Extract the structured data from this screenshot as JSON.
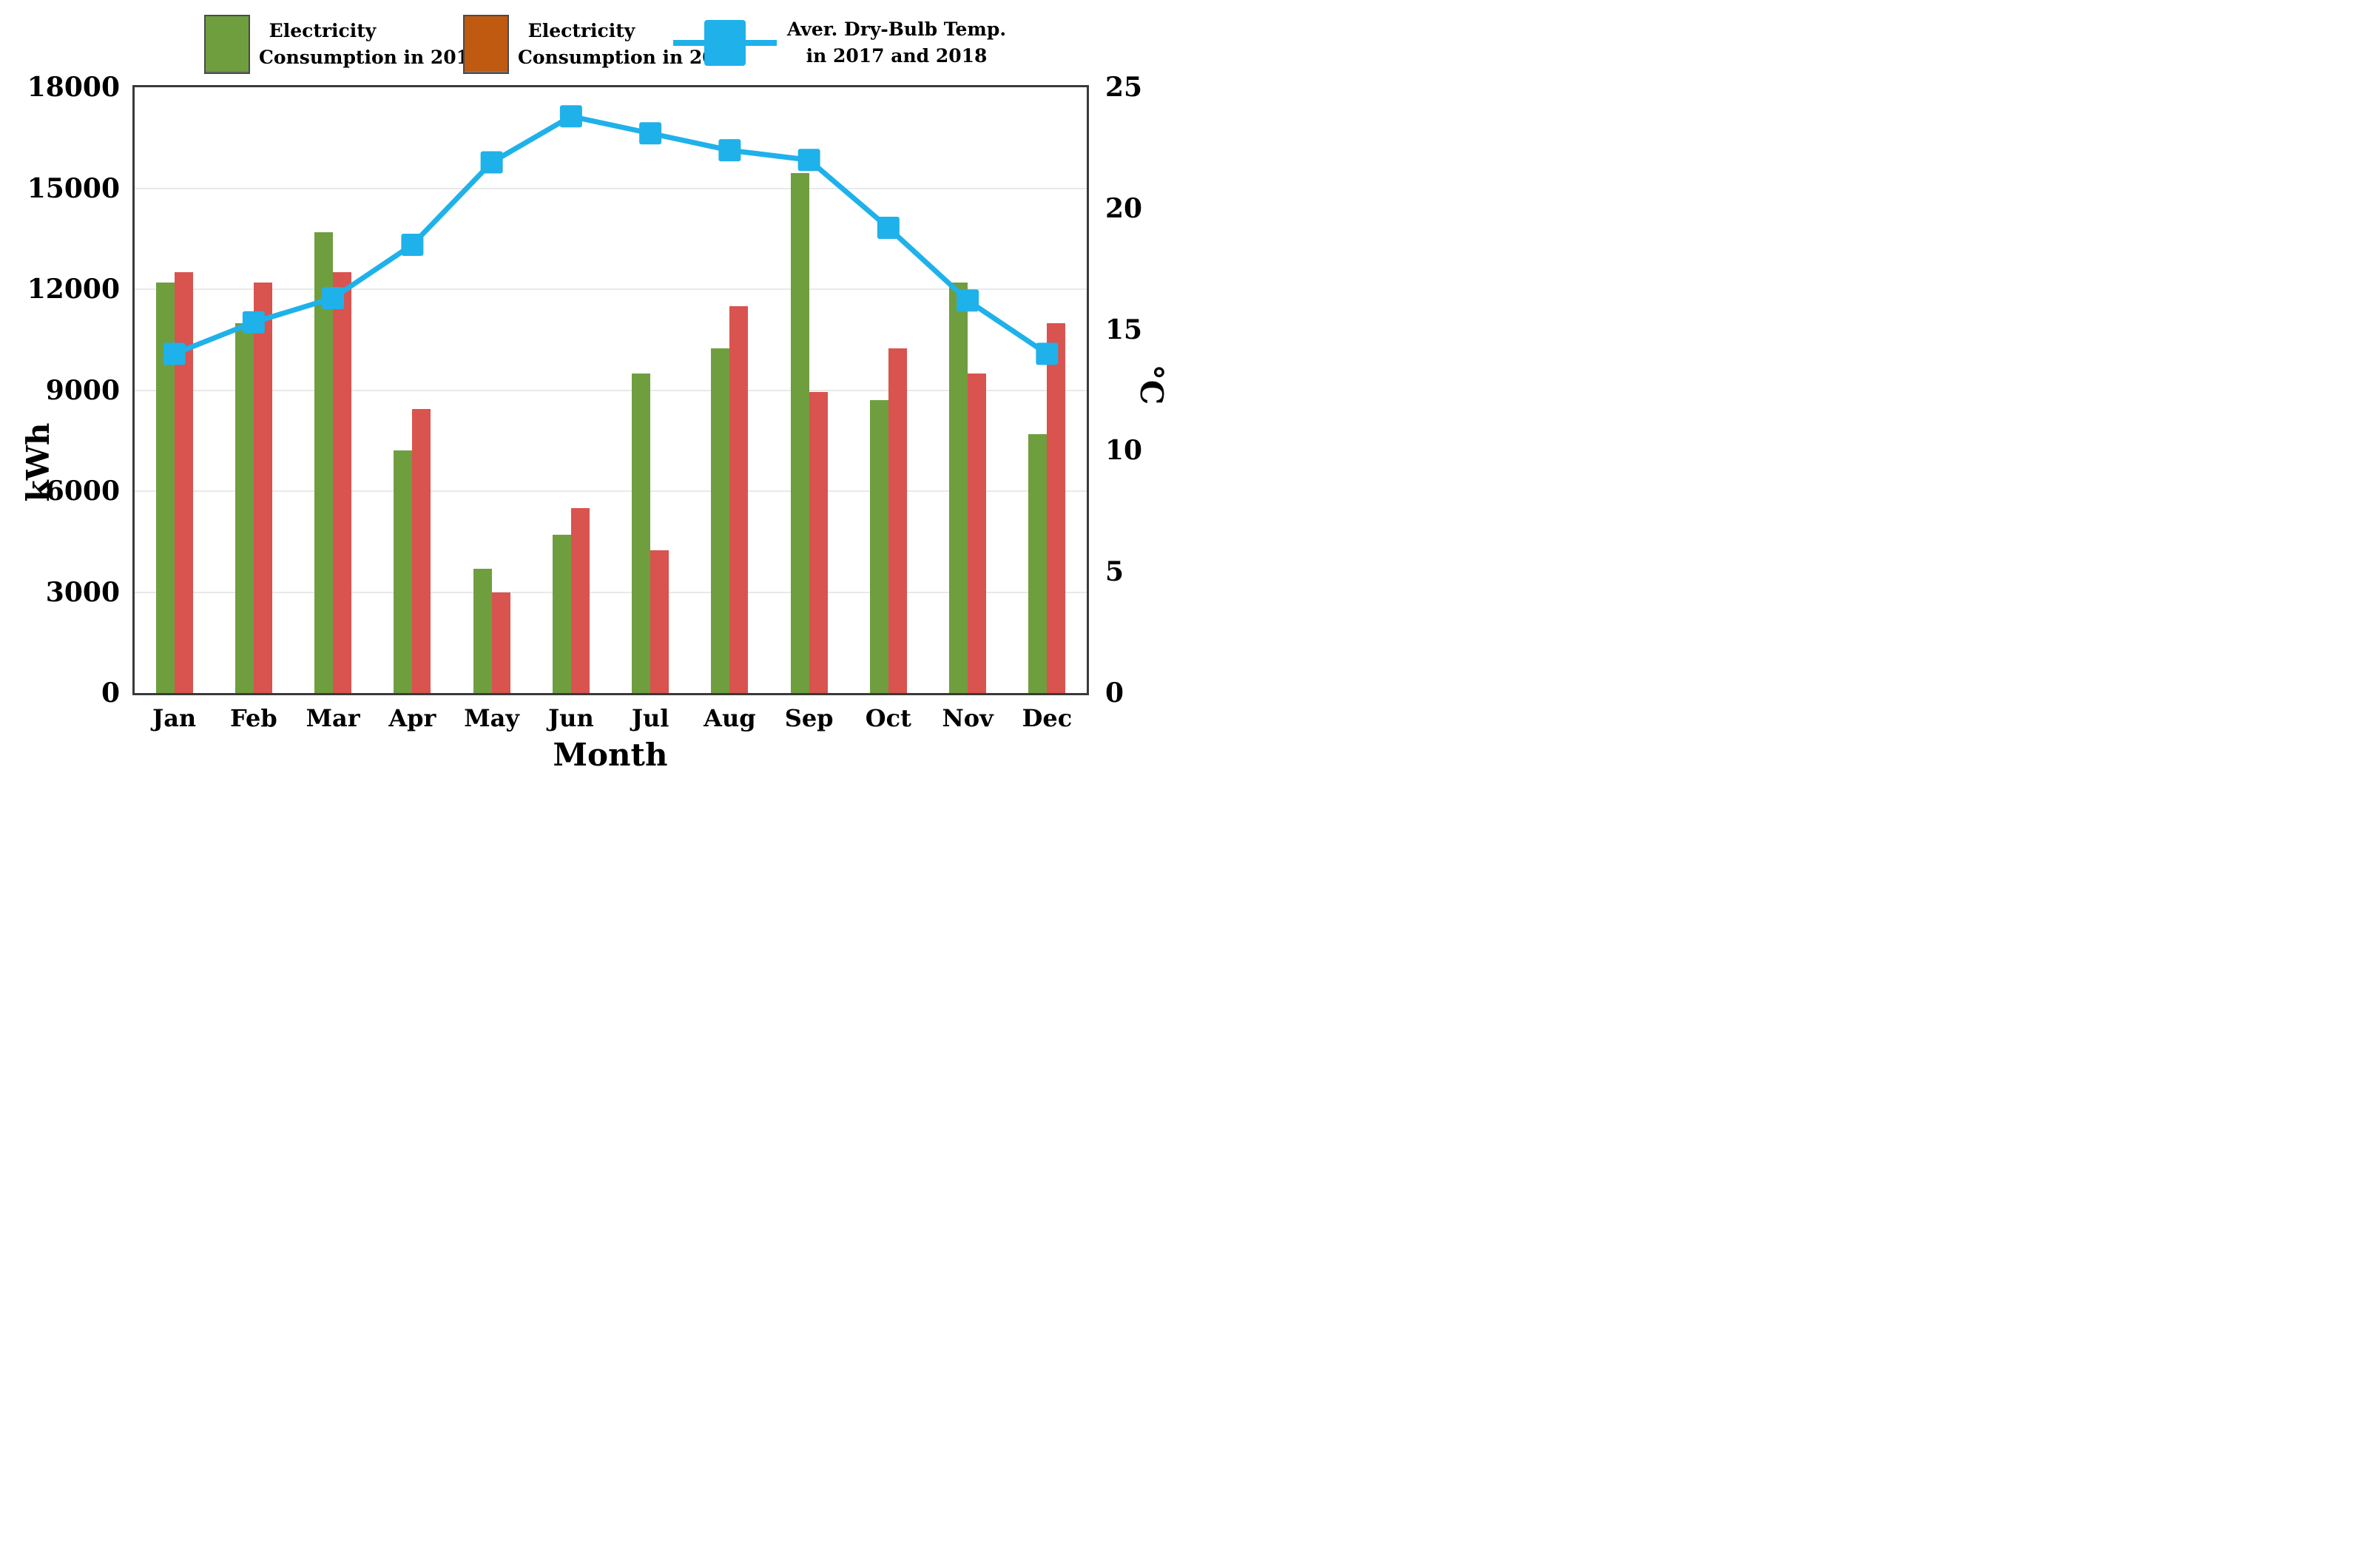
{
  "figure": {
    "background": "#ffffff"
  },
  "legend": {
    "items": [
      {
        "name": "electricity-2017",
        "line1": "Electricity",
        "line2": "Consumption in 2017",
        "swatch_color": "#6f9e3f"
      },
      {
        "name": "electricity-2018",
        "line1": "Electricity",
        "line2": "Consumption in 2018",
        "swatch_color": "#c05a11"
      },
      {
        "name": "dry-bulb-temp",
        "line1": "Aver. Dry-Bulb Temp.",
        "line2": "in 2017 and 2018",
        "swatch_color": "#1fb1ea"
      }
    ]
  },
  "chart_data": {
    "type": "bar+line",
    "categories": [
      "Jan",
      "Feb",
      "Mar",
      "Apr",
      "May",
      "Jun",
      "Jul",
      "Aug",
      "Sep",
      "Oct",
      "Nov",
      "Dec"
    ],
    "series": [
      {
        "name": "Electricity Consumption in 2017",
        "type": "bar",
        "axis": "left",
        "color": "#6f9e3f",
        "values": [
          12200,
          11000,
          13700,
          7200,
          3700,
          4700,
          9500,
          10250,
          15450,
          8700,
          12200,
          7700
        ]
      },
      {
        "name": "Electricity Consumption in 2018",
        "type": "bar",
        "axis": "left",
        "color": "#d9534f",
        "values": [
          12500,
          12200,
          12500,
          8450,
          3000,
          5500,
          4250,
          11500,
          8950,
          10250,
          9500,
          11000
        ]
      },
      {
        "name": "Aver. Dry-Bulb Temp. in 2017 and 2018",
        "type": "line",
        "axis": "right",
        "color": "#1fb1ea",
        "marker": "square",
        "values": [
          14.0,
          15.3,
          16.3,
          18.5,
          21.9,
          23.8,
          23.1,
          22.4,
          22.0,
          19.2,
          16.2,
          14.0
        ]
      }
    ],
    "left_axis": {
      "label": "kWh",
      "min": 0,
      "max": 18000,
      "step": 3000,
      "ticks": [
        0,
        3000,
        6000,
        9000,
        12000,
        15000,
        18000
      ]
    },
    "right_axis": {
      "label": "°C",
      "min": 0,
      "max": 25,
      "step": 5,
      "ticks": [
        0,
        5,
        10,
        15,
        20,
        25
      ]
    },
    "x_axis": {
      "label": "Month"
    },
    "grid": {
      "horizontal": true,
      "color": "#e9e9e9"
    },
    "plot_border_color": "#3a3a3a",
    "legend_position": "top"
  }
}
